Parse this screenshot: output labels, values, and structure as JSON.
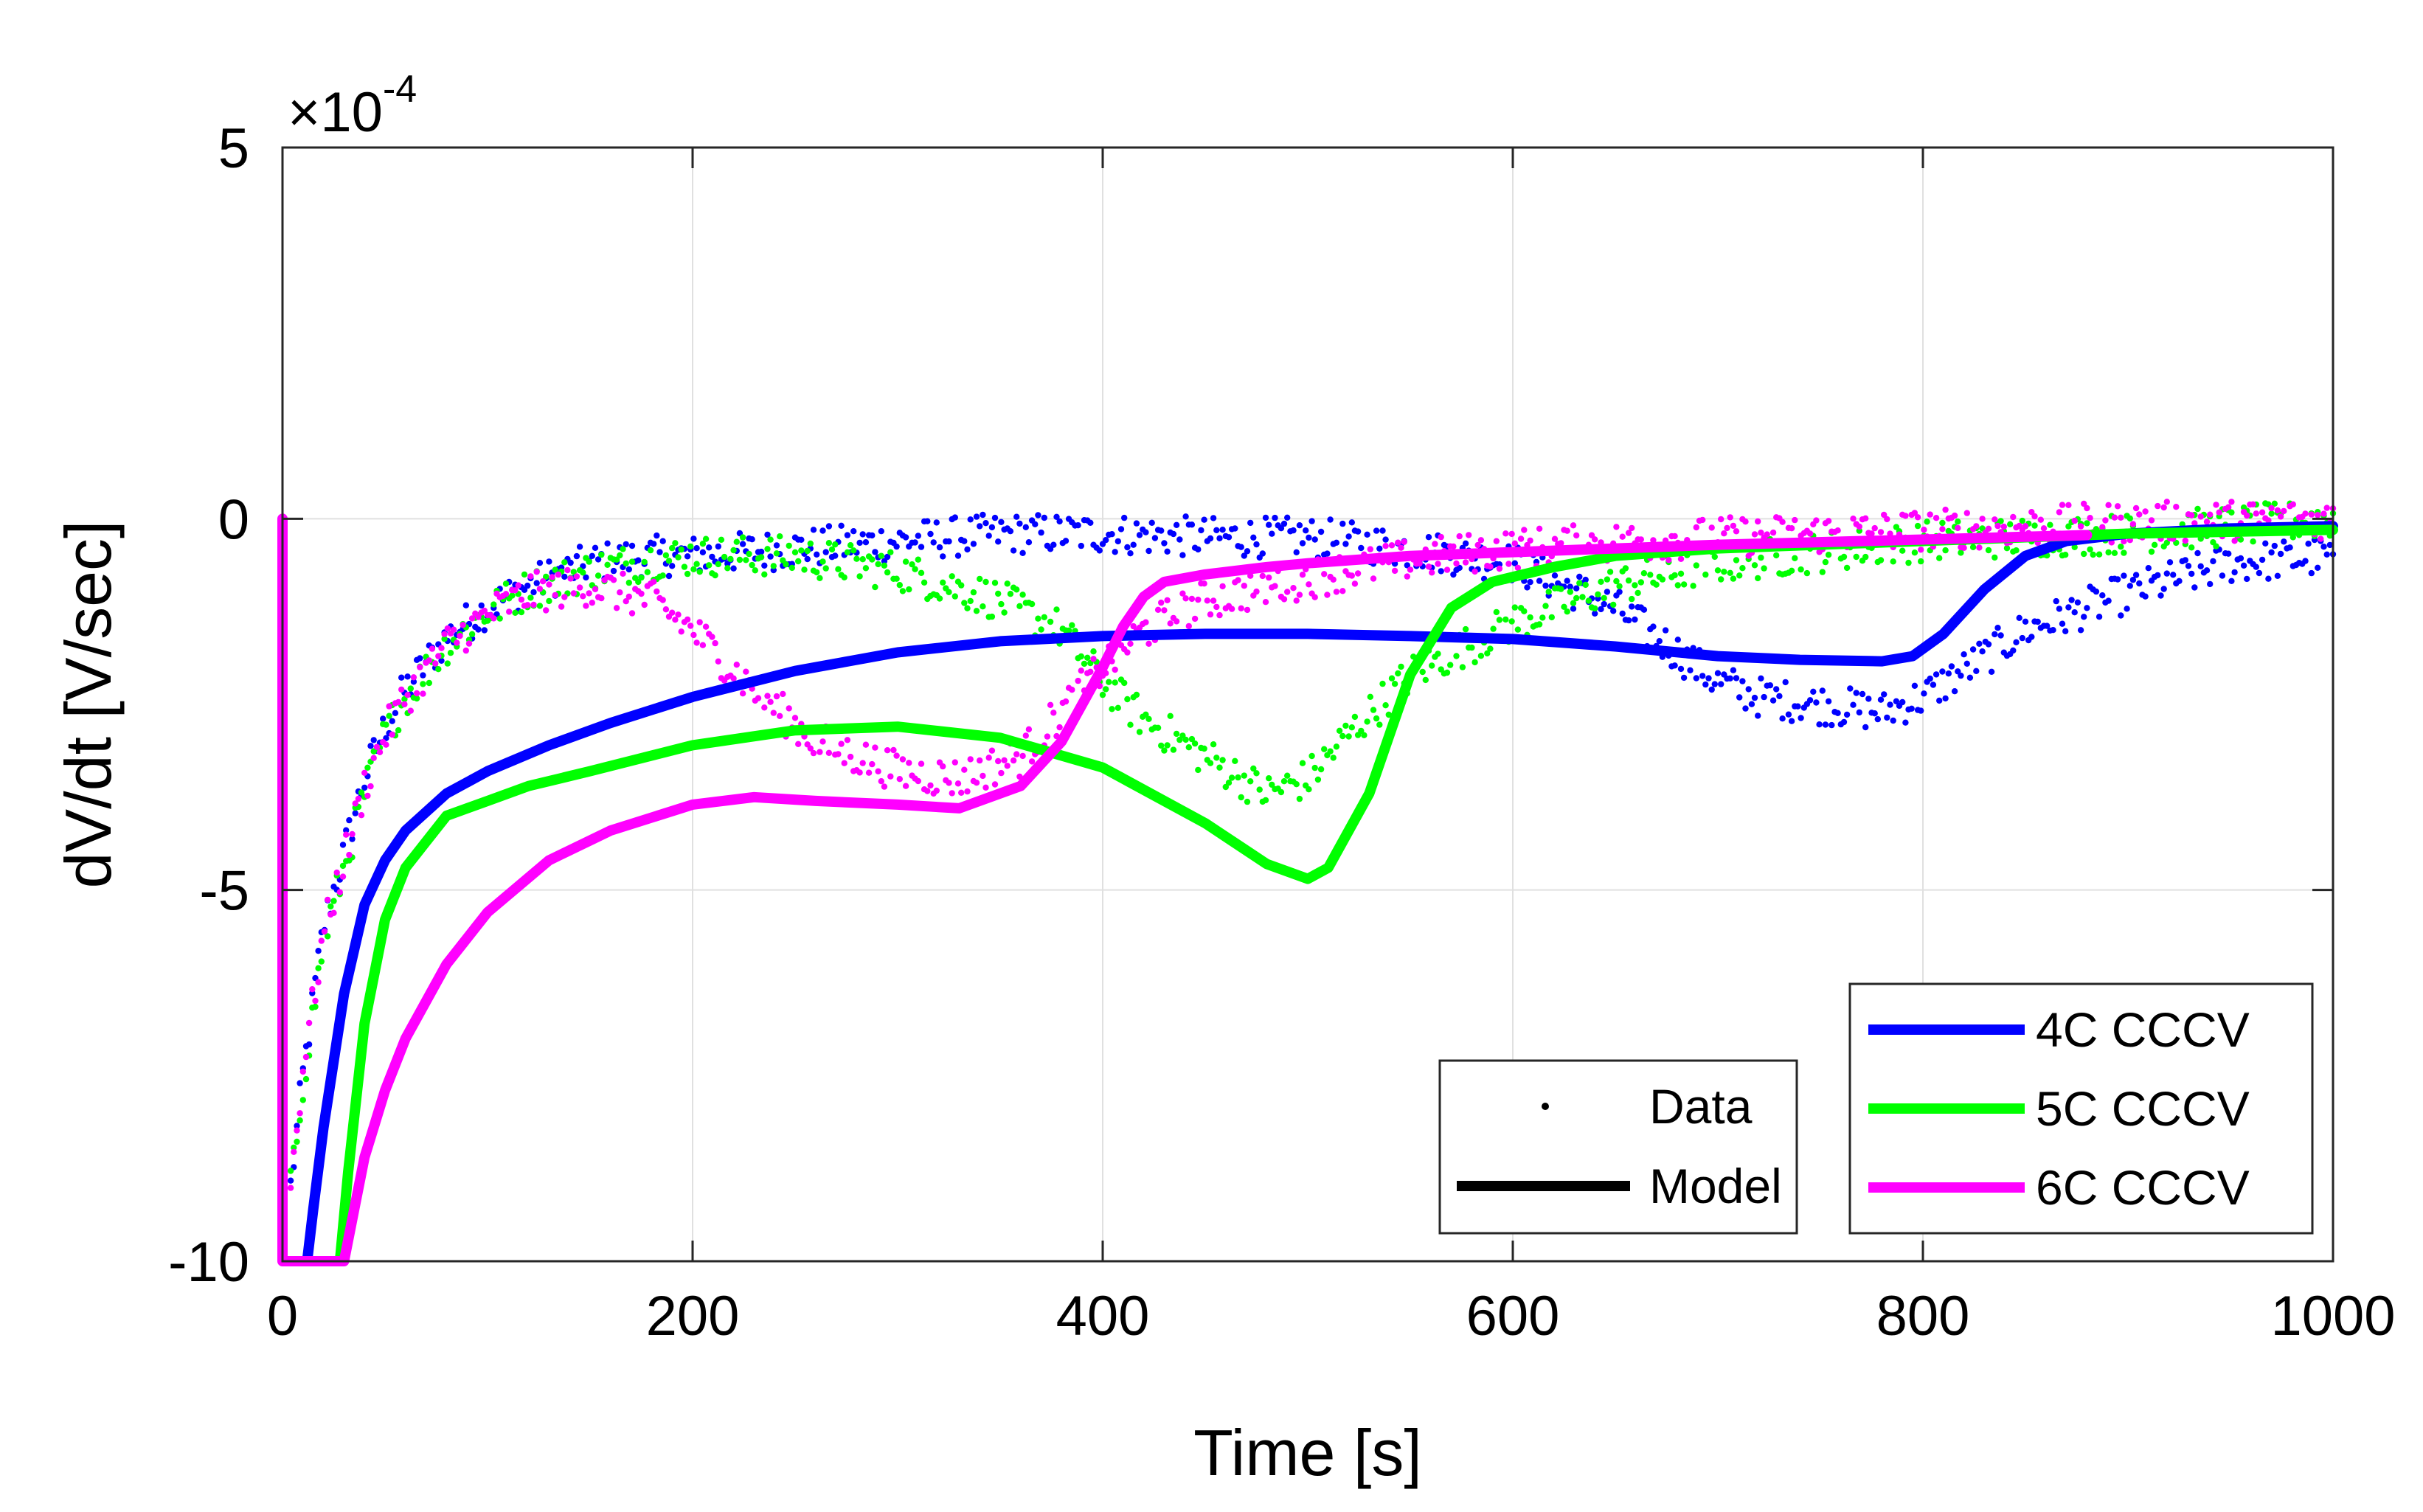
{
  "chart_data": {
    "type": "line",
    "title": "",
    "xlabel": "Time [s]",
    "ylabel": "dV/dt [V/sec]",
    "y_multiplier": {
      "times": "×",
      "base": "10",
      "exponent": "-4"
    },
    "xlim": [
      0,
      1000
    ],
    "ylim": [
      -10,
      5
    ],
    "xticks": [
      0,
      200,
      400,
      600,
      800,
      1000
    ],
    "yticks": [
      5,
      0,
      -5,
      -10
    ],
    "xtick_labels": [
      "0",
      "200",
      "400",
      "600",
      "800",
      "1000"
    ],
    "ytick_labels": [
      "5",
      "0",
      "-5",
      "-10"
    ],
    "grid": true,
    "legend_style": {
      "position": "bottom-right",
      "entries": [
        {
          "label": "Data",
          "marker": "dot"
        },
        {
          "label": "Model",
          "marker": "line"
        }
      ]
    },
    "series": [
      {
        "name": "4C CCCV",
        "color": "#0000ff",
        "model": {
          "x": [
            12,
            15,
            20,
            30,
            40,
            50,
            60,
            80,
            100,
            130,
            160,
            200,
            250,
            300,
            350,
            400,
            450,
            500,
            550,
            600,
            650,
            700,
            740,
            780,
            795,
            810,
            830,
            850,
            870,
            900,
            950,
            1000
          ],
          "y": [
            -10,
            -9.3,
            -8.2,
            -6.4,
            -5.2,
            -4.6,
            -4.2,
            -3.7,
            -3.4,
            -3.05,
            -2.75,
            -2.4,
            -2.05,
            -1.8,
            -1.65,
            -1.58,
            -1.55,
            -1.55,
            -1.58,
            -1.62,
            -1.72,
            -1.85,
            -1.9,
            -1.92,
            -1.85,
            -1.55,
            -0.95,
            -0.5,
            -0.3,
            -0.2,
            -0.13,
            -0.1
          ]
        },
        "data": {
          "x": [
            0,
            10,
            20,
            30,
            40,
            50,
            60,
            80,
            100,
            120,
            150,
            180,
            200,
            250,
            300,
            350,
            400,
            450,
            500,
            550,
            600,
            650,
            700,
            720,
            750,
            780,
            800,
            850,
            900,
            950,
            1000
          ],
          "y": [
            -10,
            -7.5,
            -5.5,
            -4.5,
            -3.5,
            -2.8,
            -2.3,
            -1.6,
            -1.2,
            -0.9,
            -0.6,
            -0.5,
            -0.5,
            -0.4,
            -0.3,
            -0.2,
            -0.2,
            -0.25,
            -0.25,
            -0.4,
            -0.6,
            -1.2,
            -2.2,
            -2.4,
            -2.5,
            -2.6,
            -2.4,
            -1.5,
            -1.0,
            -0.6,
            -0.5
          ]
        }
      },
      {
        "name": "5C CCCV",
        "color": "#00ff00",
        "model": {
          "x": [
            28,
            32,
            40,
            50,
            60,
            70,
            80,
            100,
            120,
            150,
            200,
            250,
            300,
            350,
            400,
            450,
            480,
            500,
            510,
            530,
            550,
            570,
            590,
            620,
            650,
            700,
            800,
            900,
            1000
          ],
          "y": [
            -10,
            -8.8,
            -6.8,
            -5.4,
            -4.7,
            -4.35,
            -4.0,
            -3.8,
            -3.6,
            -3.4,
            -3.05,
            -2.85,
            -2.8,
            -2.95,
            -3.35,
            -4.1,
            -4.65,
            -4.85,
            -4.7,
            -3.7,
            -2.1,
            -1.2,
            -0.85,
            -0.65,
            -0.5,
            -0.4,
            -0.3,
            -0.2,
            -0.15
          ]
        },
        "data": {
          "x": [
            0,
            10,
            20,
            30,
            40,
            50,
            60,
            80,
            100,
            120,
            150,
            180,
            200,
            250,
            300,
            350,
            380,
            400,
            420,
            450,
            480,
            500,
            520,
            550,
            600,
            650,
            700,
            800,
            900,
            1000
          ],
          "y": [
            -10,
            -7.6,
            -5.7,
            -4.7,
            -3.7,
            -2.9,
            -2.4,
            -1.7,
            -1.25,
            -0.95,
            -0.7,
            -0.55,
            -0.5,
            -0.5,
            -0.7,
            -1.1,
            -1.5,
            -2.2,
            -2.7,
            -3.2,
            -3.7,
            -3.5,
            -2.9,
            -2.1,
            -1.4,
            -0.9,
            -0.6,
            -0.3,
            -0.2,
            0.0
          ]
        }
      },
      {
        "name": "6C CCCV",
        "color": "#ff00ff",
        "model": {
          "x": [
            0,
            0,
            30,
            35,
            40,
            50,
            60,
            80,
            100,
            130,
            160,
            200,
            230,
            260,
            300,
            330,
            360,
            380,
            400,
            410,
            420,
            430,
            450,
            480,
            500,
            550,
            600,
            700,
            800,
            880
          ],
          "y": [
            0,
            -10,
            -10,
            -9.3,
            -8.6,
            -7.7,
            -7.0,
            -6.0,
            -5.3,
            -4.6,
            -4.2,
            -3.85,
            -3.75,
            -3.8,
            -3.85,
            -3.9,
            -3.6,
            -3.0,
            -2.0,
            -1.45,
            -1.05,
            -0.85,
            -0.75,
            -0.65,
            -0.6,
            -0.5,
            -0.45,
            -0.35,
            -0.28,
            -0.22
          ]
        },
        "data": {
          "x": [
            0,
            10,
            20,
            30,
            40,
            50,
            60,
            80,
            100,
            120,
            150,
            180,
            200,
            230,
            260,
            300,
            330,
            360,
            380,
            400,
            420,
            450,
            500,
            550,
            600,
            700,
            800,
            900,
            1000
          ],
          "y": [
            -10,
            -7.4,
            -5.6,
            -4.6,
            -3.6,
            -2.9,
            -2.4,
            -1.7,
            -1.3,
            -1.0,
            -0.9,
            -1.1,
            -1.5,
            -2.3,
            -3.0,
            -3.4,
            -3.5,
            -3.2,
            -2.6,
            -2.0,
            -1.5,
            -1.1,
            -0.8,
            -0.55,
            -0.4,
            -0.25,
            -0.15,
            -0.05,
            0.0
          ]
        }
      }
    ]
  }
}
